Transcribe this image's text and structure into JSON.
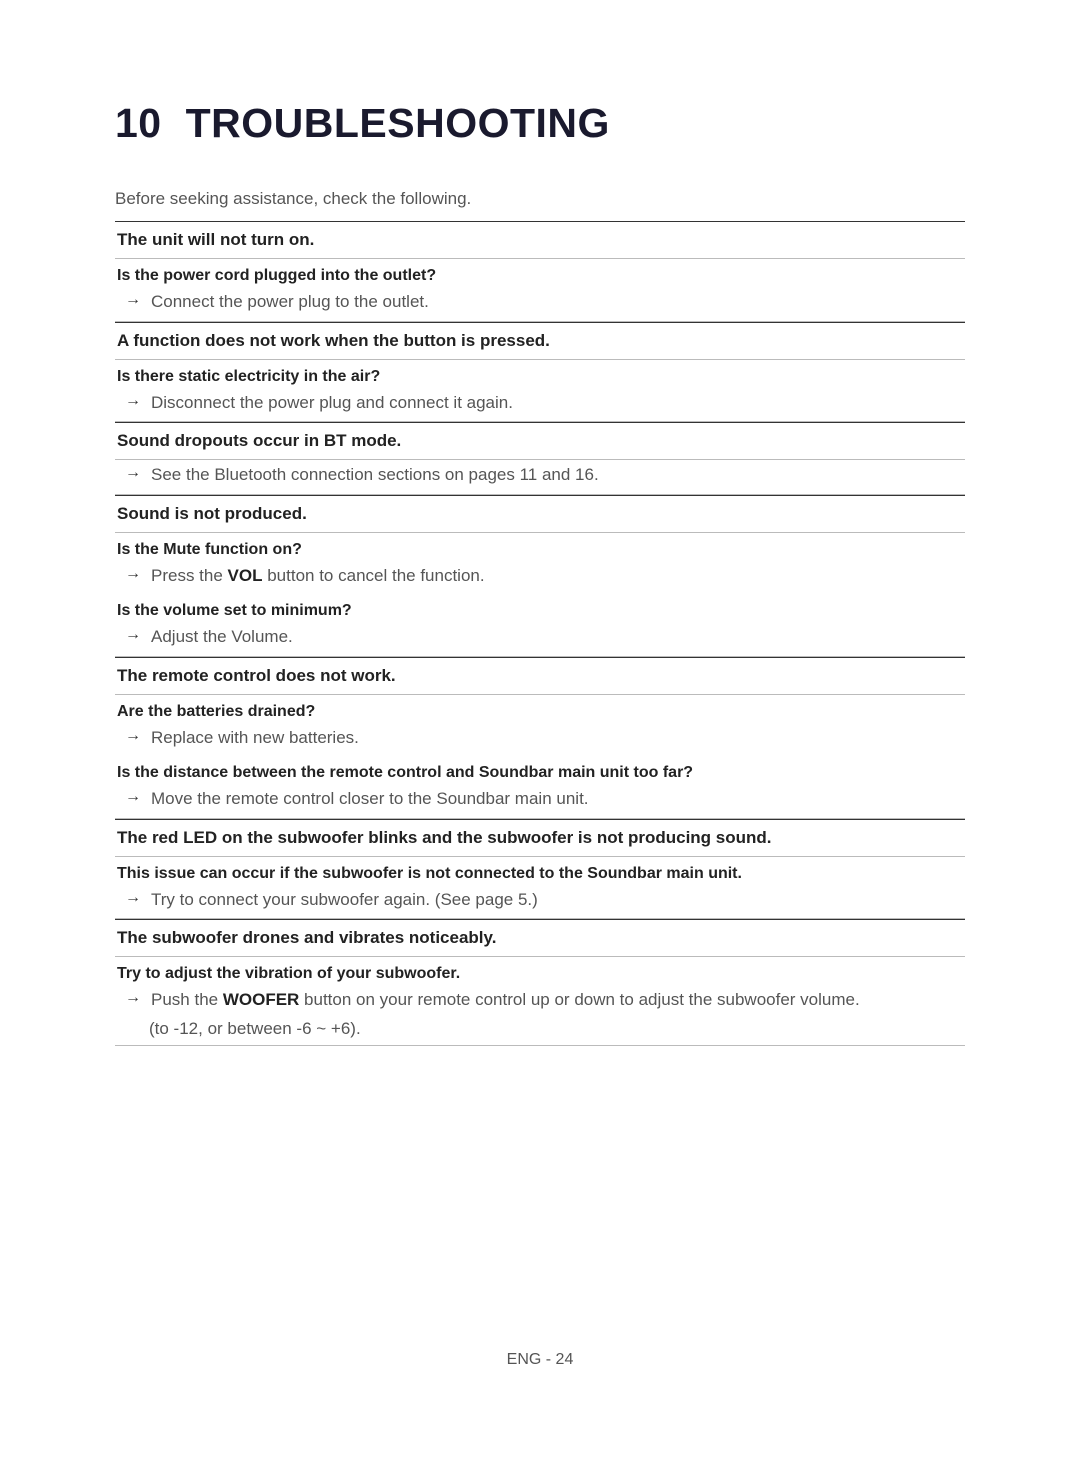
{
  "chapter": {
    "number": "10",
    "title": "TROUBLESHOOTING",
    "title_fontsize": 41,
    "title_color": "#1a1a2e"
  },
  "intro": "Before seeking assistance, check the following.",
  "sections": [
    {
      "header": "The unit will not turn on.",
      "items": [
        {
          "question": "Is the power cord plugged into the outlet?",
          "answer_prefix": "",
          "answer_bold": "",
          "answer_suffix": "Connect the power plug to the outlet."
        }
      ]
    },
    {
      "header": "A function does not work when the button is pressed.",
      "items": [
        {
          "question": "Is there static electricity in the air?",
          "answer_prefix": "",
          "answer_bold": "",
          "answer_suffix": "Disconnect the power plug and connect it again."
        }
      ]
    },
    {
      "header": "Sound dropouts occur in BT mode.",
      "items": [
        {
          "question": "",
          "answer_prefix": "",
          "answer_bold": "",
          "answer_suffix": "See the Bluetooth connection sections on pages 11 and 16."
        }
      ]
    },
    {
      "header": "Sound is not produced.",
      "items": [
        {
          "question": "Is the Mute function on?",
          "answer_prefix": "Press the ",
          "answer_bold": "VOL",
          "answer_suffix": " button to cancel the function."
        },
        {
          "question": "Is the volume set to minimum?",
          "answer_prefix": "",
          "answer_bold": "",
          "answer_suffix": "Adjust the Volume."
        }
      ]
    },
    {
      "header": "The remote control does not work.",
      "items": [
        {
          "question": "Are the batteries drained?",
          "answer_prefix": "",
          "answer_bold": "",
          "answer_suffix": "Replace with new batteries."
        },
        {
          "question": "Is the distance between the remote control and Soundbar main unit too far?",
          "answer_prefix": "",
          "answer_bold": "",
          "answer_suffix": "Move the remote control closer to the Soundbar main unit."
        }
      ]
    },
    {
      "header": "The red LED on the subwoofer blinks and the subwoofer is not producing sound.",
      "items": [
        {
          "question": "This issue can occur if the subwoofer is not connected to the Soundbar main unit.",
          "answer_prefix": "",
          "answer_bold": "",
          "answer_suffix": "Try to connect your subwoofer again. (See page 5.)"
        }
      ]
    },
    {
      "header": "The subwoofer drones and vibrates noticeably.",
      "items": [
        {
          "question": "Try to adjust the vibration of your subwoofer.",
          "answer_prefix": "Push the ",
          "answer_bold": "WOOFER",
          "answer_suffix": " button on your remote control up or down to adjust the subwoofer volume.",
          "answer_line2": "(to -12, or between -6 ~ +6)."
        }
      ]
    }
  ],
  "footer": "ENG - 24",
  "arrow_glyph": "→",
  "colors": {
    "background": "#ffffff",
    "heading": "#1a1a2e",
    "body_text": "#555555",
    "bold_text": "#222222",
    "rule_dark": "#333333",
    "rule_light": "#bbbbbb"
  },
  "typography": {
    "body_fontsize": 17,
    "question_fontsize": 16,
    "footer_fontsize": 16
  }
}
